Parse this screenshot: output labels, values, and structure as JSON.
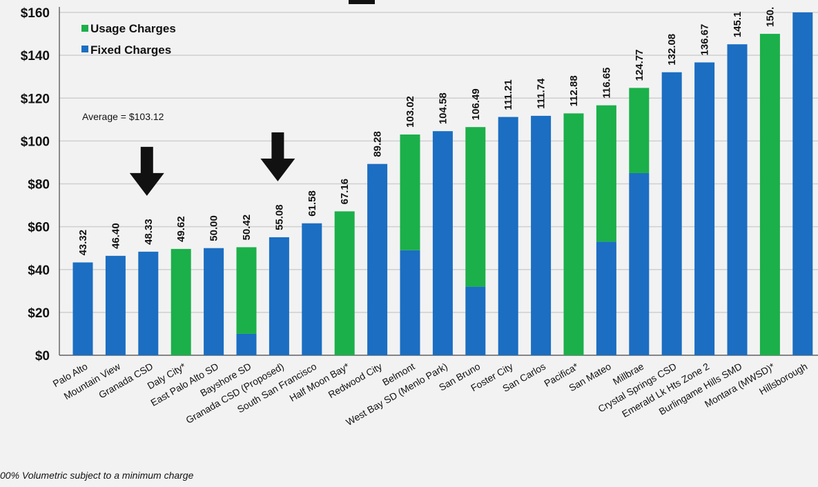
{
  "chart_data": {
    "type": "bar",
    "stacked": true,
    "categories": [
      "Palo Alto",
      "Mountain View",
      "Granada CSD",
      "Daly City*",
      "East Palo Alto SD",
      "Bayshore SD",
      "Granada CSD (Proposed)",
      "South San Francisco",
      "Half Moon Bay*",
      "Redwood City",
      "Belmont",
      "West Bay SD (Menlo Park)",
      "San Bruno",
      "Foster City",
      "San Carlos",
      "Pacifica*",
      "San Mateo",
      "Millbrae",
      "Crystal Springs CSD",
      "Emerald Lk Hts Zone 2",
      "Burlingame Hills SMD",
      "Montara (MWSD)*",
      "Hillsborough"
    ],
    "totals": [
      43.32,
      46.4,
      48.33,
      49.62,
      50.0,
      50.42,
      55.08,
      61.58,
      67.16,
      89.28,
      103.02,
      104.58,
      106.49,
      111.21,
      111.74,
      112.88,
      116.65,
      124.77,
      132.08,
      136.67,
      145.13,
      150.0,
      160.0
    ],
    "value_labels": [
      "43.32",
      "46.40",
      "48.33",
      "49.62",
      "50.00",
      "50.42",
      "55.08",
      "61.58",
      "67.16",
      "89.28",
      "103.02",
      "104.58",
      "106.49",
      "111.21",
      "111.74",
      "112.88",
      "116.65",
      "124.77",
      "132.08",
      "136.67",
      "145.1",
      "150.",
      ""
    ],
    "series": [
      {
        "name": "Fixed Charges",
        "color": "#1b6ec2",
        "values": [
          43.32,
          46.4,
          48.33,
          0,
          50.0,
          10,
          55.08,
          61.58,
          0,
          89.28,
          49,
          104.58,
          32,
          111.21,
          111.74,
          0,
          53,
          85,
          132.08,
          136.67,
          145.13,
          0,
          160.0
        ]
      },
      {
        "name": "Usage Charges",
        "color": "#1bb04a",
        "values": [
          0,
          0,
          0,
          49.62,
          0,
          40.42,
          0,
          0,
          67.16,
          0,
          54.02,
          0,
          74.49,
          0,
          0,
          112.88,
          63.65,
          39.77,
          0,
          0,
          0,
          150.0,
          0
        ]
      }
    ],
    "legend": [
      "Usage Charges",
      "Fixed Charges"
    ],
    "legend_position": "top-left",
    "yticks": [
      "$0",
      "$20",
      "$40",
      "$60",
      "$80",
      "$100",
      "$120",
      "$140",
      "$160"
    ],
    "ylim": [
      0,
      160
    ],
    "grid": true,
    "annotation": "Average = $103.12",
    "arrows_at": [
      "Granada CSD",
      "Granada CSD (Proposed)"
    ],
    "footnote": "00% Volumetric subject to a minimum charge"
  }
}
